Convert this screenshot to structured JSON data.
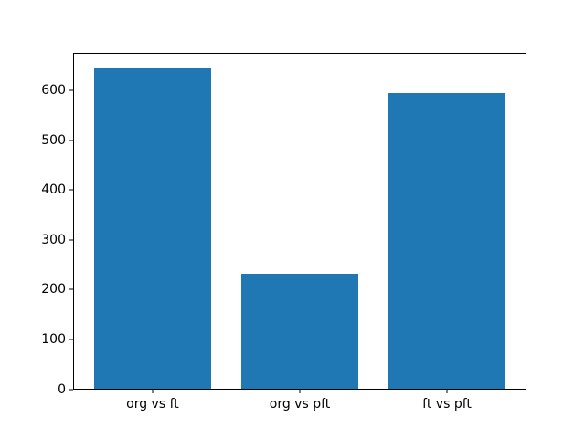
{
  "chart_data": {
    "type": "bar",
    "title": "",
    "xlabel": "",
    "ylabel": "",
    "categories": [
      "org vs ft",
      "org vs pft",
      "ft vs pft"
    ],
    "values": [
      645,
      232,
      595
    ],
    "yticks": [
      0,
      100,
      200,
      300,
      400,
      500,
      600
    ],
    "ytick_labels": [
      "0",
      "100",
      "200",
      "300",
      "400",
      "500",
      "600"
    ],
    "ylim": [
      0,
      677
    ],
    "xlim": [
      -0.54,
      2.54
    ],
    "bar_width": 0.8,
    "bar_color": "#1f77b4",
    "background_color": "#ffffff",
    "axis_color": "#000000",
    "text_color": "#000000",
    "grid": false,
    "legend": "none"
  }
}
